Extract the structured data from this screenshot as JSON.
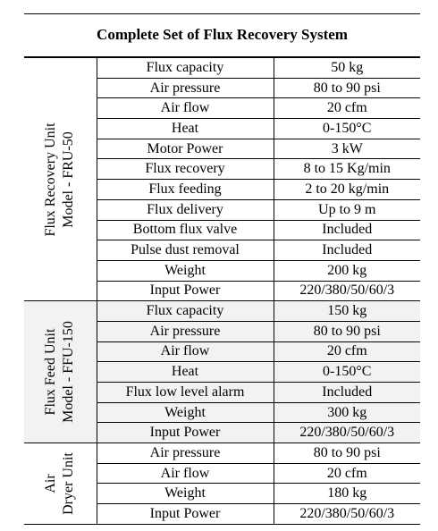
{
  "title": "Complete Set of Flux Recovery System",
  "groups": [
    {
      "label_line1": "Flux Recovery Unit",
      "label_line2": "Model - FRU-50",
      "rows": [
        {
          "param": "Flux capacity",
          "value": "50 kg"
        },
        {
          "param": "Air pressure",
          "value": "80 to 90 psi"
        },
        {
          "param": "Air flow",
          "value": "20 cfm"
        },
        {
          "param": "Heat",
          "value": "0-150°C"
        },
        {
          "param": "Motor Power",
          "value": "3 kW"
        },
        {
          "param": "Flux recovery",
          "value": "8 to 15 Kg/min"
        },
        {
          "param": "Flux feeding",
          "value": "2 to 20 kg/min"
        },
        {
          "param": "Flux delivery",
          "value": "Up to 9 m"
        },
        {
          "param": "Bottom flux valve",
          "value": "Included"
        },
        {
          "param": "Pulse dust removal",
          "value": "Included"
        },
        {
          "param": "Weight",
          "value": "200 kg"
        },
        {
          "param": "Input Power",
          "value": "220/380/50/60/3"
        }
      ]
    },
    {
      "label_line1": "Flux Feed Unit",
      "label_line2": "Model - FFU-150",
      "rows": [
        {
          "param": "Flux capacity",
          "value": "150 kg"
        },
        {
          "param": "Air pressure",
          "value": "80 to 90 psi"
        },
        {
          "param": "Air flow",
          "value": "20 cfm"
        },
        {
          "param": "Heat",
          "value": "0-150°C"
        },
        {
          "param": "Flux low level alarm",
          "value": "Included"
        },
        {
          "param": "Weight",
          "value": "300 kg"
        },
        {
          "param": "Input Power",
          "value": "220/380/50/60/3"
        }
      ]
    },
    {
      "label_line1": "Air",
      "label_line2": "Dryer Unit",
      "rows": [
        {
          "param": "Air pressure",
          "value": "80 to 90 psi"
        },
        {
          "param": "Air flow",
          "value": "20 cfm"
        },
        {
          "param": "Weight",
          "value": "180 kg"
        },
        {
          "param": "Input Power",
          "value": "220/380/50/60/3"
        }
      ]
    }
  ]
}
